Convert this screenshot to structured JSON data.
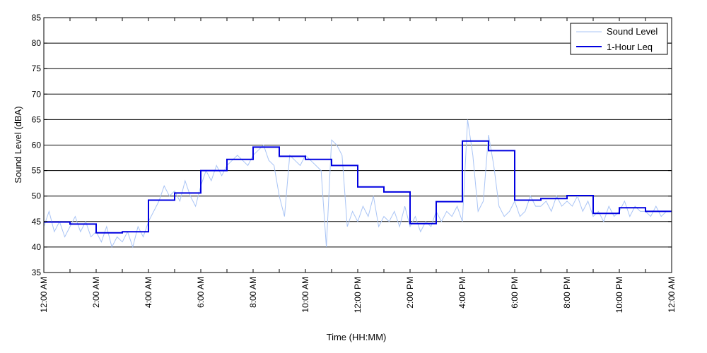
{
  "chart_data": {
    "type": "line",
    "title": "",
    "xlabel": "Time (HH:MM)",
    "ylabel": "Sound Level (dBA)",
    "xlim": [
      0,
      24
    ],
    "ylim": [
      35,
      85
    ],
    "y_ticks": [
      35,
      40,
      45,
      50,
      55,
      60,
      65,
      70,
      75,
      80,
      85
    ],
    "x_ticks": [
      0,
      1,
      2,
      3,
      4,
      5,
      6,
      7,
      8,
      9,
      10,
      11,
      12,
      13,
      14,
      15,
      16,
      17,
      18,
      19,
      20,
      21,
      22,
      23,
      24
    ],
    "x_tick_labels": [
      {
        "x": 0,
        "label": "12:00 AM"
      },
      {
        "x": 2,
        "label": "2:00 AM"
      },
      {
        "x": 4,
        "label": "4:00 AM"
      },
      {
        "x": 6,
        "label": "6:00 AM"
      },
      {
        "x": 8,
        "label": "8:00 AM"
      },
      {
        "x": 10,
        "label": "10:00 AM"
      },
      {
        "x": 12,
        "label": "12:00 PM"
      },
      {
        "x": 14,
        "label": "2:00 PM"
      },
      {
        "x": 16,
        "label": "4:00 PM"
      },
      {
        "x": 18,
        "label": "6:00 PM"
      },
      {
        "x": 20,
        "label": "8:00 PM"
      },
      {
        "x": 22,
        "label": "10:00 PM"
      },
      {
        "x": 24,
        "label": "12:00 AM"
      }
    ],
    "grid": true,
    "legend_position": "top-right",
    "series": [
      {
        "name": "Sound Level",
        "color": "#a9c4f5",
        "style": "thin-line",
        "x": [
          0.0,
          0.2,
          0.4,
          0.6,
          0.8,
          1.0,
          1.2,
          1.4,
          1.6,
          1.8,
          2.0,
          2.2,
          2.4,
          2.6,
          2.8,
          3.0,
          3.2,
          3.4,
          3.6,
          3.8,
          4.0,
          4.2,
          4.4,
          4.6,
          4.8,
          5.0,
          5.2,
          5.4,
          5.6,
          5.8,
          6.0,
          6.2,
          6.4,
          6.6,
          6.8,
          7.0,
          7.2,
          7.4,
          7.6,
          7.8,
          8.0,
          8.2,
          8.4,
          8.6,
          8.8,
          9.0,
          9.2,
          9.4,
          9.6,
          9.8,
          10.0,
          10.2,
          10.4,
          10.6,
          10.8,
          11.0,
          11.2,
          11.4,
          11.6,
          11.8,
          12.0,
          12.2,
          12.4,
          12.6,
          12.8,
          13.0,
          13.2,
          13.4,
          13.6,
          13.8,
          14.0,
          14.2,
          14.4,
          14.6,
          14.8,
          15.0,
          15.2,
          15.4,
          15.6,
          15.8,
          16.0,
          16.2,
          16.4,
          16.6,
          16.8,
          17.0,
          17.2,
          17.4,
          17.6,
          17.8,
          18.0,
          18.2,
          18.4,
          18.6,
          18.8,
          19.0,
          19.2,
          19.4,
          19.6,
          19.8,
          20.0,
          20.2,
          20.4,
          20.6,
          20.8,
          21.0,
          21.2,
          21.4,
          21.6,
          21.8,
          22.0,
          22.2,
          22.4,
          22.6,
          22.8,
          23.0,
          23.2,
          23.4,
          23.6,
          23.8,
          24.0
        ],
        "values": [
          44,
          47,
          43,
          45,
          42,
          44,
          46,
          43,
          45,
          42,
          43,
          41,
          44,
          40,
          42,
          41,
          43,
          40,
          44,
          42,
          45,
          47,
          49,
          52,
          50,
          51,
          49,
          53,
          50,
          48,
          52,
          55,
          53,
          56,
          54,
          56,
          57,
          58,
          57,
          56,
          58,
          59,
          60,
          57,
          56,
          50,
          46,
          58,
          57,
          56,
          58,
          57,
          56,
          55,
          40,
          61,
          60,
          58,
          44,
          47,
          45,
          48,
          46,
          50,
          44,
          46,
          45,
          47,
          44,
          48,
          44,
          46,
          43,
          45,
          44,
          47,
          45,
          47,
          46,
          48,
          45,
          65,
          58,
          47,
          49,
          62,
          56,
          48,
          46,
          47,
          49,
          46,
          47,
          50,
          48,
          48,
          49,
          47,
          50,
          48,
          49,
          48,
          50,
          47,
          49,
          46,
          47,
          45,
          48,
          46,
          47,
          49,
          46,
          48,
          47,
          47,
          46,
          48,
          46,
          47,
          47
        ]
      },
      {
        "name": "1-Hour Leq",
        "color": "#0000e0",
        "style": "step",
        "x": [
          0,
          1,
          2,
          3,
          4,
          5,
          6,
          7,
          8,
          9,
          10,
          11,
          12,
          13,
          14,
          15,
          16,
          17,
          18,
          19,
          20,
          21,
          22,
          23
        ],
        "values": [
          44.9,
          44.5,
          42.8,
          43.0,
          49.2,
          50.6,
          55.0,
          57.2,
          59.6,
          57.8,
          57.2,
          56.0,
          51.8,
          50.8,
          44.6,
          48.9,
          60.8,
          58.9,
          49.2,
          49.5,
          50.1,
          46.6,
          47.7,
          47.0
        ]
      }
    ]
  }
}
